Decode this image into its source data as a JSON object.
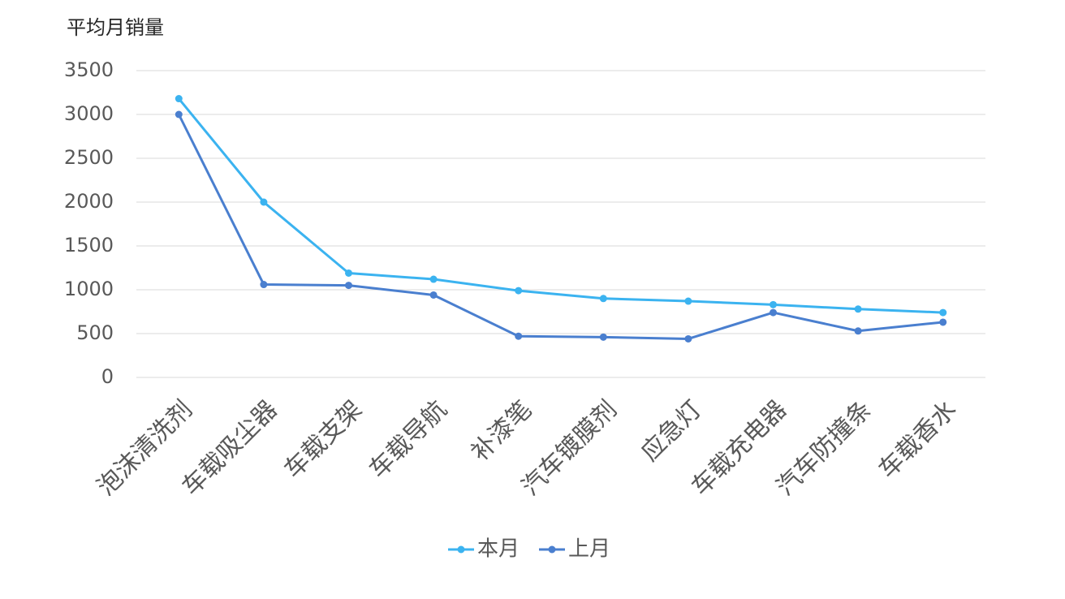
{
  "chart_data": {
    "type": "line",
    "y_label": "平均月销量",
    "categories": [
      "泡沫清洗剂",
      "车载吸尘器",
      "车载支架",
      "车载导航",
      "补漆笔",
      "汽车镀膜剂",
      "应急灯",
      "车载充电器",
      "汽车防撞条",
      "车载香水"
    ],
    "series": [
      {
        "name": "本月",
        "color": "#3bb3f0",
        "values": [
          3180,
          2000,
          1190,
          1120,
          990,
          900,
          870,
          830,
          780,
          740
        ]
      },
      {
        "name": "上月",
        "color": "#4a7fcf",
        "values": [
          3000,
          1060,
          1050,
          940,
          470,
          460,
          440,
          740,
          530,
          630
        ]
      }
    ],
    "ylim": [
      0,
      3500
    ],
    "yticks": [
      0,
      500,
      1000,
      1500,
      2000,
      2500,
      3000,
      3500
    ],
    "grid": true,
    "legend": "bottom"
  }
}
